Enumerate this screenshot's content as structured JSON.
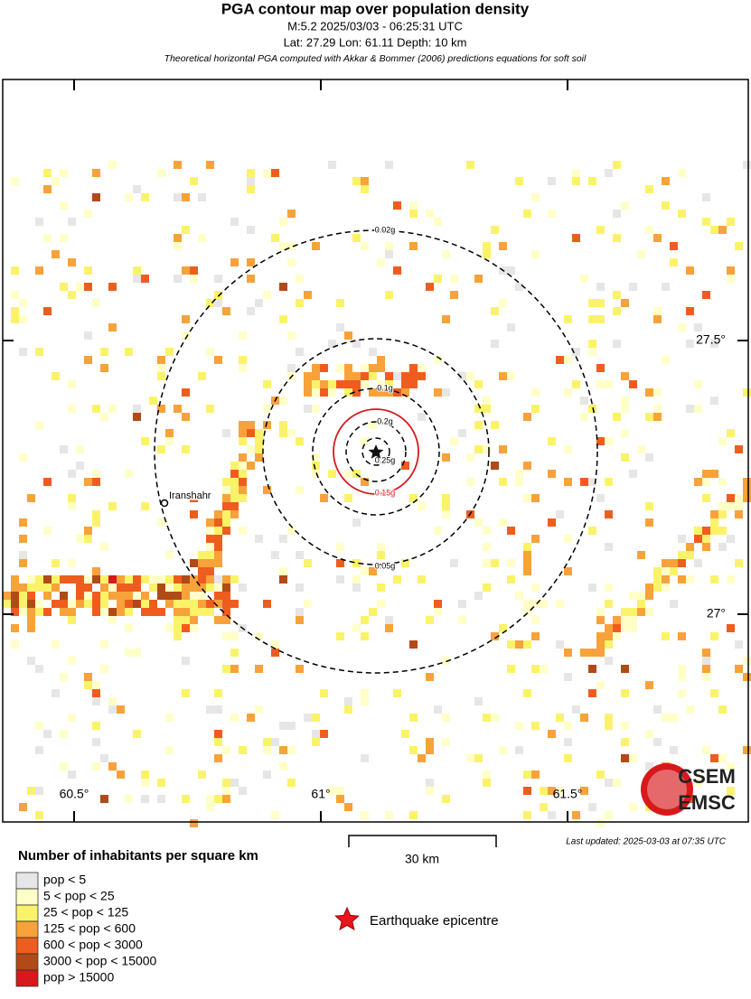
{
  "header": {
    "title": "PGA contour map over population density",
    "line1": "M:5.2 2025/03/03 - 06:25:31 UTC",
    "line2": "Lat: 27.29 Lon: 61.11 Depth: 10 km",
    "note": "Theoretical horizontal PGA computed with Akkar & Bommer (2006) predictions equations for soft soil"
  },
  "map": {
    "contours": [
      {
        "label": "0.02g",
        "color": "#000000"
      },
      {
        "label": "0.05g",
        "color": "#000000"
      },
      {
        "label": "0.1g",
        "color": "#000000"
      },
      {
        "label": "0.15g",
        "color": "#d7191c"
      },
      {
        "label": "0.2g",
        "color": "#000000"
      },
      {
        "label": "0.25g",
        "color": "#000000"
      }
    ],
    "city": "Iranshahr",
    "lon_labels": [
      "60.5°",
      "61°",
      "61.5°"
    ],
    "lat_labels": [
      "27.5°",
      "27°"
    ],
    "logo": [
      "CSEM",
      "EMSC"
    ]
  },
  "footer": {
    "updated": "Last updated: 2025-03-03 at 07:35 UTC",
    "scale": "30 km",
    "epicentre": "Earthquake epicentre"
  },
  "legend": {
    "title": "Number of inhabitants per square km",
    "items": [
      {
        "label": "pop < 5",
        "color": "#e6e6e6"
      },
      {
        "label": "5 < pop < 25",
        "color": "#ffffc8"
      },
      {
        "label": "25 < pop < 125",
        "color": "#faf36a"
      },
      {
        "label": "125 < pop < 600",
        "color": "#f7a23a"
      },
      {
        "label": "600 < pop < 3000",
        "color": "#ee5d1f"
      },
      {
        "label": "3000 < pop < 15000",
        "color": "#b04a18"
      },
      {
        "label": "pop > 15000",
        "color": "#d7191c"
      }
    ]
  }
}
